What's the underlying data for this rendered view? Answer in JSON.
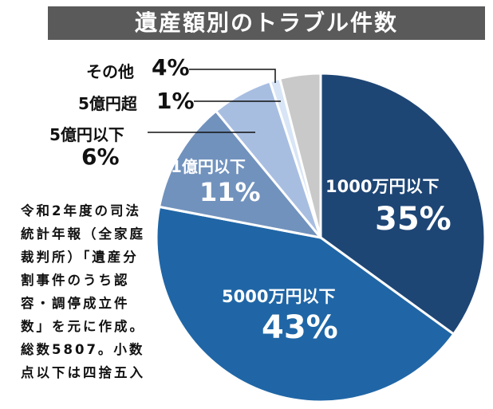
{
  "chart_data": {
    "type": "pie",
    "title": "遺産額別のトラブル件数",
    "start": "top",
    "direction": "clockwise",
    "slices": [
      {
        "label": "1000万円以下",
        "value": 35,
        "display": "35%",
        "color": "#1e4675"
      },
      {
        "label": "5000万円以下",
        "value": 43,
        "display": "43%",
        "color": "#2066a6"
      },
      {
        "label": "1億円以下",
        "value": 11,
        "display": "11%",
        "color": "#7192bd"
      },
      {
        "label": "5億円以下",
        "value": 6,
        "display": "6%",
        "color": "#a8bee1"
      },
      {
        "label": "5億円超",
        "value": 1,
        "display": "1%",
        "color": "#d8e5f6"
      },
      {
        "label": "その他",
        "value": 4,
        "display": "4%",
        "color": "#c9c9c9"
      }
    ],
    "note": "令和2年度の司法統計年報（全家庭裁判所）「遺産分割事件のうち認容・調停成立件数」を元に作成。総数5807。小数点以下は四捨五入"
  }
}
